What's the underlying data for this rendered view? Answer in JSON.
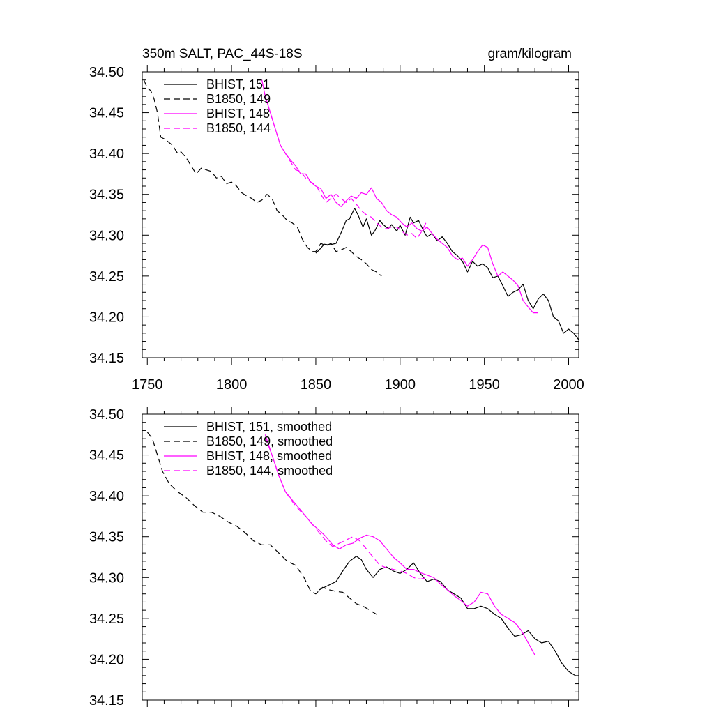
{
  "chart_data": [
    {
      "type": "line",
      "title": "350m SALT, PAC_44S-18S",
      "units": "gram/kilogram",
      "xlim": [
        1747,
        2006
      ],
      "ylim": [
        34.15,
        34.5
      ],
      "xticks": [
        1750,
        1800,
        1850,
        1900,
        1950,
        2000
      ],
      "xtick_labels": [
        "1750",
        "1800",
        "1850",
        "1900",
        "1950",
        "2000"
      ],
      "yticks": [
        34.15,
        34.2,
        34.25,
        34.3,
        34.35,
        34.4,
        34.45,
        34.5
      ],
      "ytick_labels": [
        "34.15",
        "34.20",
        "34.25",
        "34.30",
        "34.35",
        "34.40",
        "34.45",
        "34.50"
      ],
      "grid": false,
      "legend_position": "top-left",
      "series": [
        {
          "name": "BHIST, 151",
          "color": "#000000",
          "dash": "solid",
          "x": [
            1850,
            1852,
            1855,
            1858,
            1862,
            1865,
            1868,
            1870,
            1873,
            1875,
            1878,
            1880,
            1883,
            1885,
            1888,
            1890,
            1893,
            1895,
            1898,
            1900,
            1903,
            1906,
            1908,
            1911,
            1914,
            1916,
            1919,
            1922,
            1925,
            1928,
            1931,
            1934,
            1937,
            1940,
            1943,
            1946,
            1949,
            1952,
            1955,
            1958,
            1961,
            1964,
            1967,
            1970,
            1973,
            1976,
            1979,
            1982,
            1985,
            1988,
            1991,
            1994,
            1997,
            2000,
            2003,
            2006
          ],
          "y": [
            34.278,
            34.282,
            34.289,
            34.288,
            34.29,
            34.303,
            34.318,
            34.32,
            34.333,
            34.325,
            34.31,
            34.32,
            34.3,
            34.305,
            34.318,
            34.313,
            34.308,
            34.313,
            34.305,
            34.312,
            34.3,
            34.322,
            34.315,
            34.318,
            34.305,
            34.298,
            34.302,
            34.293,
            34.298,
            34.29,
            34.28,
            34.275,
            34.268,
            34.255,
            34.268,
            34.262,
            34.265,
            34.26,
            34.248,
            34.25,
            34.238,
            34.225,
            34.23,
            34.233,
            34.24,
            34.22,
            34.21,
            34.222,
            34.228,
            34.22,
            34.2,
            34.195,
            34.18,
            34.185,
            34.18,
            34.172
          ]
        },
        {
          "name": "B1850, 149",
          "color": "#000000",
          "dash": "dashed",
          "x": [
            1748,
            1750,
            1752,
            1754,
            1756,
            1758,
            1760,
            1762,
            1765,
            1768,
            1770,
            1773,
            1776,
            1779,
            1782,
            1785,
            1788,
            1791,
            1794,
            1797,
            1800,
            1803,
            1806,
            1809,
            1812,
            1815,
            1818,
            1821,
            1824,
            1827,
            1830,
            1833,
            1836,
            1839,
            1842,
            1845,
            1848,
            1850,
            1853,
            1856,
            1859,
            1862,
            1865,
            1868,
            1871,
            1874,
            1877,
            1880,
            1883,
            1886,
            1889
          ],
          "y": [
            34.49,
            34.48,
            34.477,
            34.467,
            34.45,
            34.42,
            34.418,
            34.415,
            34.41,
            34.4,
            34.402,
            34.395,
            34.385,
            34.375,
            34.382,
            34.38,
            34.378,
            34.37,
            34.372,
            34.363,
            34.365,
            34.36,
            34.352,
            34.348,
            34.345,
            34.34,
            34.343,
            34.35,
            34.345,
            34.33,
            34.325,
            34.318,
            34.315,
            34.31,
            34.295,
            34.285,
            34.28,
            34.28,
            34.29,
            34.287,
            34.29,
            34.28,
            34.282,
            34.285,
            34.28,
            34.274,
            34.27,
            34.265,
            34.258,
            34.255,
            34.25
          ]
        },
        {
          "name": "BHIST, 148",
          "color": "#ff00ff",
          "dash": "solid",
          "x": [
            1818,
            1820,
            1823,
            1826,
            1829,
            1832,
            1835,
            1838,
            1841,
            1844,
            1847,
            1850,
            1853,
            1856,
            1859,
            1862,
            1865,
            1868,
            1871,
            1874,
            1877,
            1880,
            1883,
            1886,
            1889,
            1892,
            1895,
            1898,
            1901,
            1904,
            1907,
            1910,
            1913,
            1916,
            1919,
            1922,
            1925,
            1928,
            1931,
            1934,
            1937,
            1940,
            1943,
            1946,
            1949,
            1952,
            1955,
            1958,
            1961,
            1964,
            1967,
            1970,
            1973,
            1976,
            1979,
            1982
          ],
          "y": [
            34.49,
            34.47,
            34.45,
            34.43,
            34.41,
            34.4,
            34.392,
            34.385,
            34.375,
            34.375,
            34.365,
            34.36,
            34.357,
            34.345,
            34.35,
            34.34,
            34.335,
            34.342,
            34.348,
            34.345,
            34.352,
            34.35,
            34.358,
            34.345,
            34.34,
            34.33,
            34.325,
            34.322,
            34.315,
            34.31,
            34.315,
            34.308,
            34.305,
            34.31,
            34.302,
            34.295,
            34.29,
            34.285,
            34.275,
            34.27,
            34.272,
            34.262,
            34.27,
            34.28,
            34.288,
            34.285,
            34.265,
            34.25,
            34.255,
            34.25,
            34.245,
            34.238,
            34.22,
            34.212,
            34.205,
            34.205
          ]
        },
        {
          "name": "B1850, 144",
          "color": "#ff00ff",
          "dash": "dashed",
          "x": [
            1820,
            1823,
            1826,
            1829,
            1832,
            1835,
            1838,
            1841,
            1844,
            1847,
            1850,
            1853,
            1856,
            1859,
            1862,
            1865,
            1868,
            1871,
            1874,
            1877,
            1880,
            1883,
            1886,
            1889,
            1892,
            1895,
            1898,
            1901,
            1904,
            1907,
            1910,
            1913,
            1916
          ],
          "y": [
            34.47,
            34.45,
            34.43,
            34.41,
            34.4,
            34.39,
            34.38,
            34.378,
            34.37,
            34.365,
            34.362,
            34.35,
            34.34,
            34.345,
            34.35,
            34.345,
            34.34,
            34.345,
            34.338,
            34.33,
            34.325,
            34.322,
            34.315,
            34.31,
            34.308,
            34.31,
            34.31,
            34.305,
            34.3,
            34.302,
            34.296,
            34.305,
            34.318
          ]
        }
      ]
    },
    {
      "type": "line",
      "xlim": [
        1747,
        2006
      ],
      "ylim": [
        34.15,
        34.5
      ],
      "yticks": [
        34.15,
        34.2,
        34.25,
        34.3,
        34.35,
        34.4,
        34.45,
        34.5
      ],
      "ytick_labels": [
        "34.15",
        "34.20",
        "34.25",
        "34.30",
        "34.35",
        "34.40",
        "34.45",
        "34.50"
      ],
      "grid": false,
      "legend_position": "top-left",
      "series": [
        {
          "name": "BHIST, 151, smoothed",
          "color": "#000000",
          "dash": "solid",
          "x": [
            1852,
            1857,
            1862,
            1866,
            1870,
            1874,
            1877,
            1880,
            1884,
            1888,
            1892,
            1896,
            1900,
            1904,
            1908,
            1912,
            1916,
            1920,
            1924,
            1928,
            1932,
            1936,
            1940,
            1944,
            1948,
            1952,
            1956,
            1960,
            1964,
            1968,
            1972,
            1976,
            1980,
            1984,
            1988,
            1992,
            1996,
            2000,
            2004
          ],
          "y": [
            34.285,
            34.29,
            34.295,
            34.308,
            34.32,
            34.326,
            34.322,
            34.31,
            34.3,
            34.31,
            34.313,
            34.308,
            34.305,
            34.31,
            34.318,
            34.305,
            34.295,
            34.298,
            34.295,
            34.285,
            34.28,
            34.275,
            34.262,
            34.262,
            34.265,
            34.262,
            34.255,
            34.25,
            34.238,
            34.228,
            34.23,
            34.235,
            34.225,
            34.22,
            34.222,
            34.21,
            34.195,
            34.185,
            34.18
          ]
        },
        {
          "name": "B1850, 149, smoothed",
          "color": "#000000",
          "dash": "dashed",
          "x": [
            1750,
            1753,
            1756,
            1759,
            1763,
            1768,
            1773,
            1778,
            1783,
            1788,
            1793,
            1798,
            1803,
            1808,
            1813,
            1818,
            1823,
            1828,
            1833,
            1838,
            1843,
            1847,
            1850,
            1854,
            1858,
            1862,
            1866,
            1870,
            1874,
            1878,
            1882,
            1886
          ],
          "y": [
            34.478,
            34.47,
            34.45,
            34.43,
            34.415,
            34.405,
            34.398,
            34.388,
            34.38,
            34.38,
            34.375,
            34.368,
            34.363,
            34.355,
            34.345,
            34.34,
            34.34,
            34.33,
            34.32,
            34.315,
            34.3,
            34.283,
            34.28,
            34.288,
            34.285,
            34.283,
            34.282,
            34.275,
            34.268,
            34.265,
            34.26,
            34.255
          ]
        },
        {
          "name": "BHIST, 148, smoothed",
          "color": "#ff00ff",
          "dash": "solid",
          "x": [
            1820,
            1824,
            1828,
            1832,
            1836,
            1840,
            1844,
            1848,
            1852,
            1856,
            1860,
            1864,
            1868,
            1872,
            1876,
            1880,
            1884,
            1888,
            1892,
            1896,
            1900,
            1904,
            1908,
            1912,
            1916,
            1920,
            1924,
            1928,
            1932,
            1936,
            1940,
            1944,
            1948,
            1952,
            1956,
            1960,
            1964,
            1968,
            1972,
            1976,
            1980
          ],
          "y": [
            34.475,
            34.45,
            34.425,
            34.405,
            34.395,
            34.385,
            34.375,
            34.365,
            34.358,
            34.35,
            34.34,
            34.335,
            34.34,
            34.342,
            34.348,
            34.352,
            34.35,
            34.345,
            34.335,
            34.325,
            34.318,
            34.31,
            34.31,
            34.306,
            34.303,
            34.3,
            34.292,
            34.285,
            34.278,
            34.272,
            34.265,
            34.27,
            34.282,
            34.28,
            34.265,
            34.255,
            34.25,
            34.245,
            34.235,
            34.22,
            34.205
          ]
        },
        {
          "name": "B1850, 144, smoothed",
          "color": "#ff00ff",
          "dash": "dashed",
          "x": [
            1820,
            1824,
            1828,
            1832,
            1836,
            1840,
            1844,
            1848,
            1852,
            1856,
            1860,
            1864,
            1868,
            1872,
            1876,
            1880,
            1884,
            1888,
            1892,
            1896,
            1900,
            1904,
            1908,
            1912,
            1916
          ],
          "y": [
            34.472,
            34.45,
            34.425,
            34.405,
            34.393,
            34.383,
            34.375,
            34.365,
            34.355,
            34.345,
            34.338,
            34.342,
            34.346,
            34.35,
            34.345,
            34.335,
            34.325,
            34.315,
            34.312,
            34.31,
            34.308,
            34.305,
            34.3,
            34.298,
            34.3
          ]
        }
      ]
    }
  ]
}
